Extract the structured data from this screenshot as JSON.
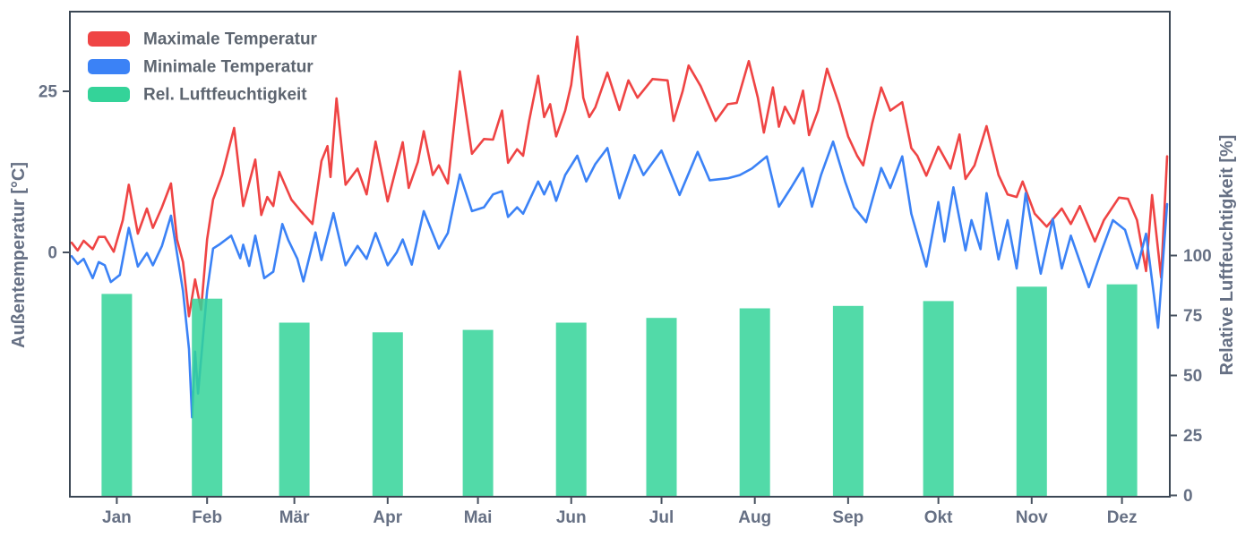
{
  "chart_data": {
    "type": "line+bar",
    "background": "#ffffff",
    "spine_color": "#3b4754",
    "tick_color": "#46505e",
    "text_color": "#667084",
    "x_axis": {
      "tick_labels": [
        "Jan",
        "Feb",
        "Mär",
        "Apr",
        "Mai",
        "Jun",
        "Jul",
        "Aug",
        "Sep",
        "Okt",
        "Nov",
        "Dez"
      ]
    },
    "left_axis": {
      "label": "Außentemperatur [°C]",
      "ticks": [
        25,
        0
      ],
      "range_approx": [
        -38,
        37
      ]
    },
    "right_axis": {
      "label": "Relative Luftfeuchtigkeit [%]",
      "ticks": [
        100,
        75,
        50,
        25,
        0
      ],
      "range_approx": [
        0,
        203
      ]
    },
    "legend": {
      "position": "upper left",
      "entries": [
        {
          "label": "Maximale Temperatur",
          "color": "#ef4444"
        },
        {
          "label": "Minimale Temperatur",
          "color": "#3b82f6"
        },
        {
          "label": "Rel. Luftfeuchtigkeit",
          "color": "#34d399"
        }
      ]
    },
    "series": [
      {
        "name": "Maximale Temperatur",
        "type": "line",
        "axis": "left",
        "unit": "°C",
        "color": "#ef4444",
        "points_day_value": [
          [
            0,
            1.5
          ],
          [
            2,
            0.3
          ],
          [
            4,
            1.8
          ],
          [
            7,
            0.5
          ],
          [
            9,
            2.4
          ],
          [
            11,
            2.4
          ],
          [
            14,
            0.1
          ],
          [
            17,
            5
          ],
          [
            19,
            10.5
          ],
          [
            22,
            2.9
          ],
          [
            25,
            6.8
          ],
          [
            27,
            3.8
          ],
          [
            30,
            7
          ],
          [
            33,
            10.7
          ],
          [
            35,
            2
          ],
          [
            37,
            -1.5
          ],
          [
            39,
            -9.9
          ],
          [
            41,
            -4.2
          ],
          [
            43,
            -8.9
          ],
          [
            45,
            2
          ],
          [
            47,
            8.2
          ],
          [
            50,
            12
          ],
          [
            54,
            19.3
          ],
          [
            57,
            7.2
          ],
          [
            61,
            14.4
          ],
          [
            63,
            5.8
          ],
          [
            65,
            8.6
          ],
          [
            67,
            7.2
          ],
          [
            69,
            12.5
          ],
          [
            73,
            8.2
          ],
          [
            76,
            6.5
          ],
          [
            80,
            4.4
          ],
          [
            83,
            14.2
          ],
          [
            85,
            16.5
          ],
          [
            86,
            11.7
          ],
          [
            88,
            23.9
          ],
          [
            91,
            10.5
          ],
          [
            95,
            13
          ],
          [
            98,
            9
          ],
          [
            101,
            17.2
          ],
          [
            105,
            7.9
          ],
          [
            110,
            17.1
          ],
          [
            112,
            10
          ],
          [
            115,
            14
          ],
          [
            117,
            18.8
          ],
          [
            120,
            12
          ],
          [
            122,
            13.5
          ],
          [
            125,
            10.7
          ],
          [
            129,
            28.1
          ],
          [
            133,
            15.3
          ],
          [
            137,
            17.6
          ],
          [
            140,
            17.5
          ],
          [
            143,
            22.0
          ],
          [
            145,
            13.9
          ],
          [
            148,
            16
          ],
          [
            150,
            15
          ],
          [
            152,
            20.4
          ],
          [
            155,
            27.4
          ],
          [
            157,
            21
          ],
          [
            159,
            23
          ],
          [
            161,
            18
          ],
          [
            164,
            22
          ],
          [
            166,
            26
          ],
          [
            168,
            33.5
          ],
          [
            170,
            24
          ],
          [
            172,
            21
          ],
          [
            174,
            22.5
          ],
          [
            178,
            27.9
          ],
          [
            182,
            22.1
          ],
          [
            185,
            26.7
          ],
          [
            188,
            24
          ],
          [
            193,
            26.9
          ],
          [
            198,
            26.7
          ],
          [
            200,
            20.4
          ],
          [
            203,
            25
          ],
          [
            205,
            29.0
          ],
          [
            209,
            25.8
          ],
          [
            214,
            20.4
          ],
          [
            218,
            23
          ],
          [
            221,
            23.2
          ],
          [
            225,
            29.7
          ],
          [
            228,
            24
          ],
          [
            230,
            18.6
          ],
          [
            233,
            25.6
          ],
          [
            235,
            19.5
          ],
          [
            237,
            22.6
          ],
          [
            240,
            20
          ],
          [
            243,
            25.1
          ],
          [
            245,
            18.2
          ],
          [
            248,
            22
          ],
          [
            251,
            28.5
          ],
          [
            255,
            23
          ],
          [
            258,
            18
          ],
          [
            261,
            15
          ],
          [
            263,
            13.5
          ],
          [
            266,
            20
          ],
          [
            269,
            25.6
          ],
          [
            272,
            22
          ],
          [
            276,
            23.3
          ],
          [
            279,
            16.2
          ],
          [
            281,
            15
          ],
          [
            284,
            11.9
          ],
          [
            288,
            16.4
          ],
          [
            292,
            13
          ],
          [
            295,
            18.3
          ],
          [
            297,
            11.4
          ],
          [
            300,
            13.5
          ],
          [
            304,
            19.6
          ],
          [
            308,
            12
          ],
          [
            311,
            9
          ],
          [
            314,
            8.6
          ],
          [
            316,
            11
          ],
          [
            320,
            6
          ],
          [
            324,
            4.0
          ],
          [
            329,
            6.8
          ],
          [
            332,
            4.4
          ],
          [
            335,
            7.2
          ],
          [
            340,
            1.7
          ],
          [
            343,
            5.0
          ],
          [
            348,
            8.5
          ],
          [
            351,
            8.3
          ],
          [
            354,
            5.0
          ],
          [
            357,
            -2.9
          ],
          [
            359,
            8.9
          ],
          [
            362,
            -3.9
          ],
          [
            364,
            14.9
          ]
        ]
      },
      {
        "name": "Minimale Temperatur",
        "type": "line",
        "axis": "left",
        "unit": "°C",
        "color": "#3b82f6",
        "points_day_value": [
          [
            0,
            -0.6
          ],
          [
            2,
            -1.8
          ],
          [
            4,
            -1
          ],
          [
            7,
            -4.0
          ],
          [
            9,
            -1.5
          ],
          [
            11,
            -2
          ],
          [
            13,
            -4.6
          ],
          [
            16,
            -3.5
          ],
          [
            19,
            3.8
          ],
          [
            22,
            -2.2
          ],
          [
            25,
            -0.1
          ],
          [
            27,
            -2.0
          ],
          [
            30,
            1
          ],
          [
            33,
            5.7
          ],
          [
            37,
            -6
          ],
          [
            39,
            -15
          ],
          [
            40,
            -25.6
          ],
          [
            41,
            -15.4
          ],
          [
            42,
            -21.9
          ],
          [
            45,
            -6
          ],
          [
            47,
            0.6
          ],
          [
            49,
            1.2
          ],
          [
            53,
            2.6
          ],
          [
            56,
            -0.9
          ],
          [
            57,
            1.2
          ],
          [
            59,
            -2.1
          ],
          [
            61,
            2.6
          ],
          [
            64,
            -4
          ],
          [
            67,
            -3
          ],
          [
            70,
            4.4
          ],
          [
            72,
            1.9
          ],
          [
            75,
            -1
          ],
          [
            77,
            -4.5
          ],
          [
            81,
            3.1
          ],
          [
            83,
            -1.2
          ],
          [
            87,
            6.1
          ],
          [
            88,
            4
          ],
          [
            91,
            -2
          ],
          [
            95,
            1
          ],
          [
            98,
            -1
          ],
          [
            101,
            3
          ],
          [
            105,
            -2
          ],
          [
            108,
            0
          ],
          [
            110,
            2
          ],
          [
            113,
            -1.9
          ],
          [
            117,
            6.4
          ],
          [
            122,
            0.6
          ],
          [
            125,
            3
          ],
          [
            129,
            12.1
          ],
          [
            133,
            6.4
          ],
          [
            137,
            7
          ],
          [
            140,
            9
          ],
          [
            143,
            9.5
          ],
          [
            145,
            5.5
          ],
          [
            148,
            7
          ],
          [
            150,
            6
          ],
          [
            152,
            8
          ],
          [
            155,
            11
          ],
          [
            157,
            9
          ],
          [
            159,
            11
          ],
          [
            161,
            8
          ],
          [
            164,
            12
          ],
          [
            168,
            15
          ],
          [
            171,
            11
          ],
          [
            174,
            13.7
          ],
          [
            178,
            16.2
          ],
          [
            182,
            8.4
          ],
          [
            187,
            15.1
          ],
          [
            190,
            12
          ],
          [
            196,
            15.8
          ],
          [
            202,
            8.9
          ],
          [
            208,
            15.6
          ],
          [
            212,
            11.2
          ],
          [
            218,
            11.5
          ],
          [
            222,
            12
          ],
          [
            226,
            13
          ],
          [
            231,
            14.9
          ],
          [
            235,
            7.1
          ],
          [
            239,
            10
          ],
          [
            243,
            13.1
          ],
          [
            246,
            7.1
          ],
          [
            249,
            12
          ],
          [
            253,
            17.2
          ],
          [
            257,
            11
          ],
          [
            260,
            7
          ],
          [
            264,
            4.7
          ],
          [
            269,
            13.1
          ],
          [
            272,
            10
          ],
          [
            276,
            14.9
          ],
          [
            279,
            6
          ],
          [
            284,
            -2.2
          ],
          [
            288,
            7.8
          ],
          [
            290,
            1.7
          ],
          [
            293,
            10.1
          ],
          [
            297,
            0.3
          ],
          [
            299,
            5.0
          ],
          [
            302,
            0.5
          ],
          [
            304,
            9.2
          ],
          [
            308,
            -1.1
          ],
          [
            311,
            5.0
          ],
          [
            314,
            -2.5
          ],
          [
            317,
            9.2
          ],
          [
            322,
            -3.3
          ],
          [
            326,
            5.2
          ],
          [
            329,
            -2.5
          ],
          [
            332,
            2.6
          ],
          [
            338,
            -5.4
          ],
          [
            342,
            0
          ],
          [
            346,
            5.0
          ],
          [
            350,
            3.5
          ],
          [
            354,
            -2.5
          ],
          [
            357,
            2.9
          ],
          [
            361,
            -11.7
          ],
          [
            364,
            7.5
          ]
        ]
      },
      {
        "name": "Rel. Luftfeuchtigkeit",
        "type": "bar",
        "axis": "right",
        "unit": "%",
        "color": "#34d399",
        "categories": [
          "Jan",
          "Feb",
          "Mär",
          "Apr",
          "Mai",
          "Jun",
          "Jul",
          "Aug",
          "Sep",
          "Okt",
          "Nov",
          "Dez"
        ],
        "values": [
          84,
          82,
          72,
          68,
          69,
          72,
          74,
          78,
          79,
          81,
          87,
          88
        ]
      }
    ],
    "grid": false
  }
}
